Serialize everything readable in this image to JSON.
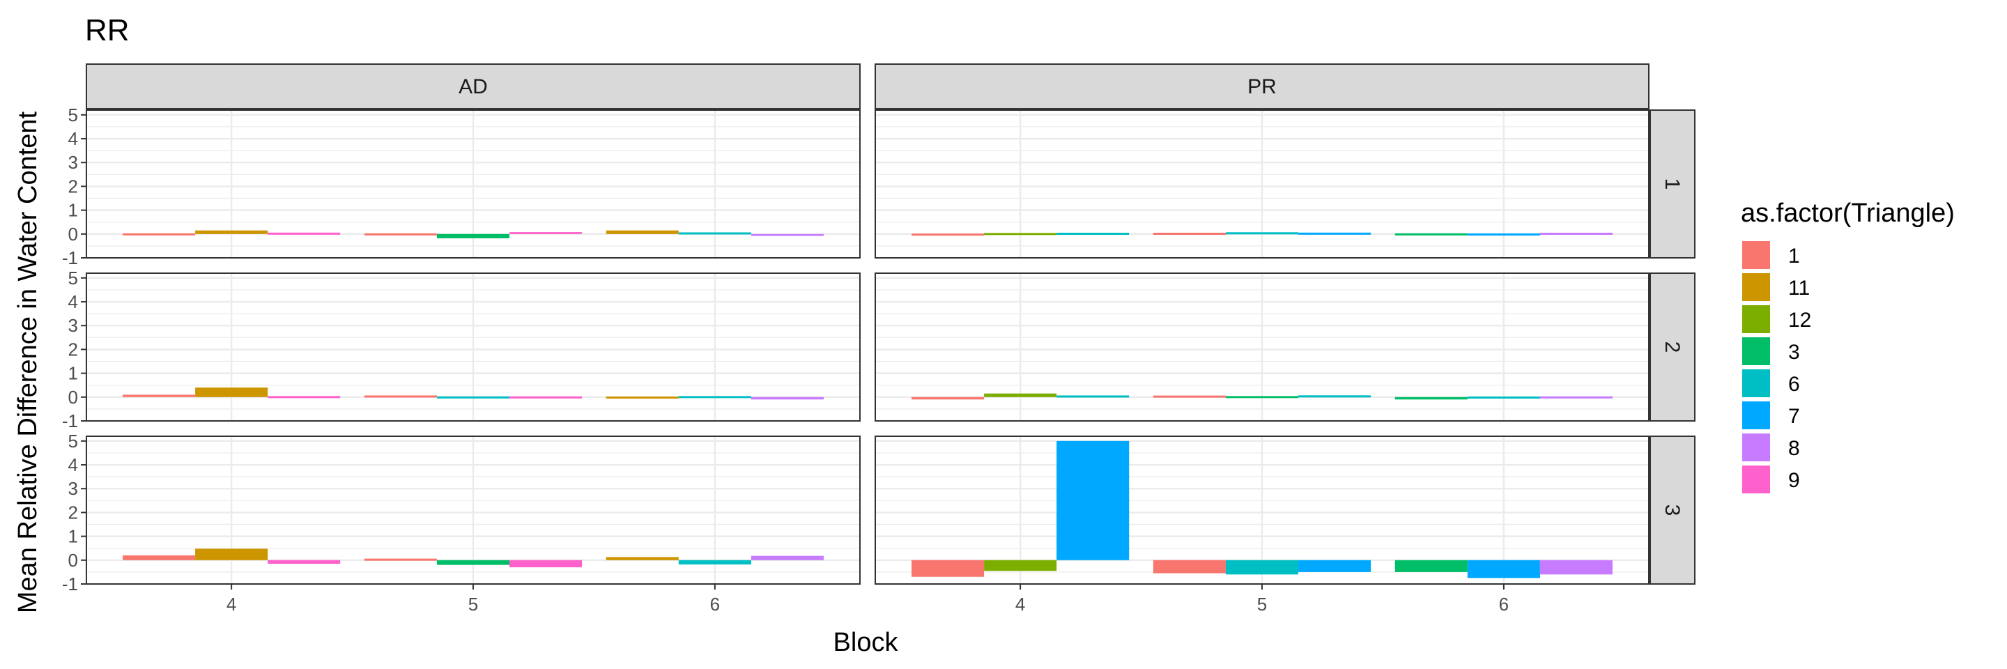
{
  "chart_data": {
    "type": "bar",
    "title": "RR",
    "xlabel": "Block",
    "ylabel": "Mean Relative Difference in Water Content",
    "ylim": [
      -1,
      5.2
    ],
    "y_ticks": [
      -1,
      0,
      1,
      2,
      3,
      4,
      5
    ],
    "grid": true,
    "x_categories": [
      "4",
      "5",
      "6"
    ],
    "facet_cols": [
      "AD",
      "PR"
    ],
    "facet_rows": [
      "1",
      "2",
      "3"
    ],
    "legend": {
      "title": "as.factor(Triangle)",
      "position": "right",
      "entries": [
        {
          "label": "1",
          "color": "#F8766D"
        },
        {
          "label": "11",
          "color": "#CD9600"
        },
        {
          "label": "12",
          "color": "#7CAE00"
        },
        {
          "label": "3",
          "color": "#00BE67"
        },
        {
          "label": "6",
          "color": "#00BFC4"
        },
        {
          "label": "7",
          "color": "#00A9FF"
        },
        {
          "label": "8",
          "color": "#C77CFF"
        },
        {
          "label": "9",
          "color": "#FF61CC"
        }
      ]
    },
    "panels": [
      {
        "col": "AD",
        "row": "1",
        "groups": [
          {
            "x": "4",
            "bars": [
              {
                "triangle": "1",
                "value": -0.03
              },
              {
                "triangle": "11",
                "value": 0.15
              },
              {
                "triangle": "9",
                "value": 0.03
              }
            ]
          },
          {
            "x": "5",
            "bars": [
              {
                "triangle": "1",
                "value": -0.03
              },
              {
                "triangle": "3",
                "value": -0.18
              },
              {
                "triangle": "9",
                "value": 0.08
              }
            ]
          },
          {
            "x": "6",
            "bars": [
              {
                "triangle": "11",
                "value": 0.15
              },
              {
                "triangle": "6",
                "value": 0.05
              },
              {
                "triangle": "8",
                "value": -0.08
              }
            ]
          }
        ]
      },
      {
        "col": "PR",
        "row": "1",
        "groups": [
          {
            "x": "4",
            "bars": [
              {
                "triangle": "1",
                "value": -0.05
              },
              {
                "triangle": "12",
                "value": 0.0
              },
              {
                "triangle": "6",
                "value": 0.02
              }
            ]
          },
          {
            "x": "5",
            "bars": [
              {
                "triangle": "1",
                "value": 0.02
              },
              {
                "triangle": "6",
                "value": 0.06
              },
              {
                "triangle": "7",
                "value": 0.03
              }
            ]
          },
          {
            "x": "6",
            "bars": [
              {
                "triangle": "3",
                "value": -0.03
              },
              {
                "triangle": "7",
                "value": -0.04
              },
              {
                "triangle": "8",
                "value": 0.02
              }
            ]
          }
        ]
      },
      {
        "col": "AD",
        "row": "2",
        "groups": [
          {
            "x": "4",
            "bars": [
              {
                "triangle": "1",
                "value": 0.1
              },
              {
                "triangle": "11",
                "value": 0.4
              },
              {
                "triangle": "9",
                "value": 0.0
              }
            ]
          },
          {
            "x": "5",
            "bars": [
              {
                "triangle": "1",
                "value": 0.05
              },
              {
                "triangle": "6",
                "value": -0.03
              },
              {
                "triangle": "9",
                "value": -0.03
              }
            ]
          },
          {
            "x": "6",
            "bars": [
              {
                "triangle": "11",
                "value": -0.04
              },
              {
                "triangle": "6",
                "value": 0.0
              },
              {
                "triangle": "8",
                "value": -0.1
              }
            ]
          }
        ]
      },
      {
        "col": "PR",
        "row": "2",
        "groups": [
          {
            "x": "4",
            "bars": [
              {
                "triangle": "1",
                "value": -0.1
              },
              {
                "triangle": "12",
                "value": 0.15
              },
              {
                "triangle": "6",
                "value": 0.05
              }
            ]
          },
          {
            "x": "5",
            "bars": [
              {
                "triangle": "1",
                "value": 0.04
              },
              {
                "triangle": "3",
                "value": 0.0
              },
              {
                "triangle": "6",
                "value": 0.06
              }
            ]
          },
          {
            "x": "6",
            "bars": [
              {
                "triangle": "3",
                "value": -0.1
              },
              {
                "triangle": "6",
                "value": -0.04
              },
              {
                "triangle": "8",
                "value": -0.03
              }
            ]
          }
        ]
      },
      {
        "col": "AD",
        "row": "3",
        "groups": [
          {
            "x": "4",
            "bars": [
              {
                "triangle": "1",
                "value": 0.2
              },
              {
                "triangle": "11",
                "value": 0.48
              },
              {
                "triangle": "9",
                "value": -0.15
              }
            ]
          },
          {
            "x": "5",
            "bars": [
              {
                "triangle": "1",
                "value": 0.04
              },
              {
                "triangle": "3",
                "value": -0.2
              },
              {
                "triangle": "9",
                "value": -0.3
              }
            ]
          },
          {
            "x": "6",
            "bars": [
              {
                "triangle": "11",
                "value": 0.13
              },
              {
                "triangle": "6",
                "value": -0.18
              },
              {
                "triangle": "8",
                "value": 0.18
              }
            ]
          }
        ]
      },
      {
        "col": "PR",
        "row": "3",
        "groups": [
          {
            "x": "4",
            "bars": [
              {
                "triangle": "1",
                "value": -0.7
              },
              {
                "triangle": "12",
                "value": -0.45
              },
              {
                "triangle": "7",
                "value": 5.0
              }
            ]
          },
          {
            "x": "5",
            "bars": [
              {
                "triangle": "1",
                "value": -0.55
              },
              {
                "triangle": "6",
                "value": -0.6
              },
              {
                "triangle": "7",
                "value": -0.5
              }
            ]
          },
          {
            "x": "6",
            "bars": [
              {
                "triangle": "3",
                "value": -0.5
              },
              {
                "triangle": "7",
                "value": -0.75
              },
              {
                "triangle": "8",
                "value": -0.6
              }
            ]
          }
        ]
      }
    ]
  }
}
